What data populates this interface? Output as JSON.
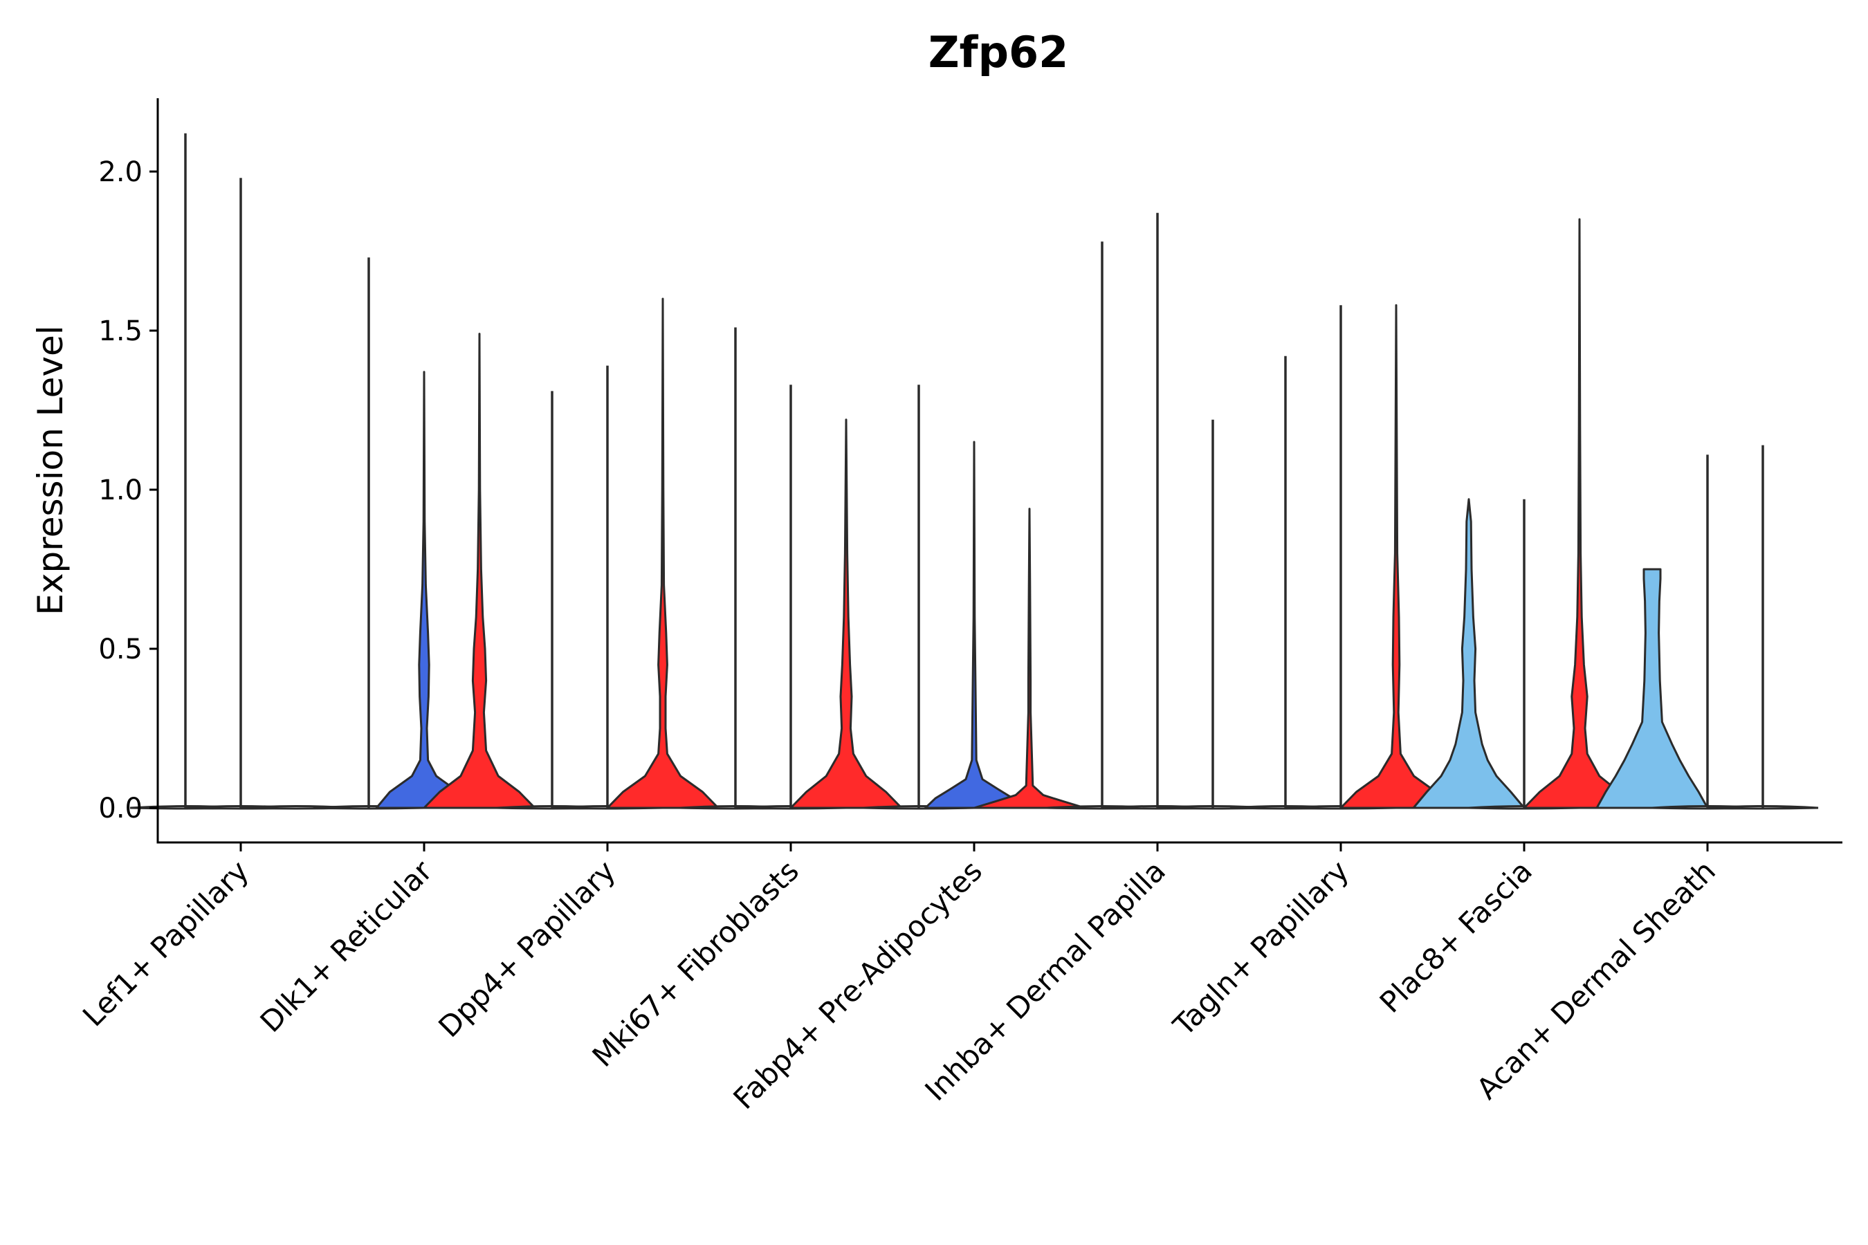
{
  "chart_data": {
    "type": "violin",
    "title": "Zfp62",
    "xlabel": "",
    "ylabel": "Expression Level",
    "ylim": [
      -0.11,
      2.24
    ],
    "yticks": [
      "0.0",
      "0.5",
      "1.0",
      "1.5",
      "2.0"
    ],
    "grid": false,
    "legend": "none",
    "colors": {
      "a": "#4169E1",
      "b": "#FF2A2A",
      "c": "#7CC0EC"
    },
    "categories": [
      "Lef1+ Papillary",
      "Dlk1+ Reticular",
      "Dpp4+ Papillary",
      "Mki67+ Fibroblasts",
      "Fabp4+ Pre-Adipocytes",
      "Inhba+ Dermal Papilla",
      "Tagln+ Papillary",
      "Plac8+ Fascia",
      "Acan+ Dermal Sheath"
    ],
    "violins": [
      {
        "category": "Lef1+ Papillary",
        "slot": 0,
        "max": 2.12,
        "color": "",
        "profile": []
      },
      {
        "category": "Lef1+ Papillary",
        "slot": 1,
        "max": 1.98,
        "color": "",
        "profile": []
      },
      {
        "category": "Lef1+ Papillary",
        "slot": 2,
        "max": 0.0,
        "color": "",
        "profile": []
      },
      {
        "category": "Dlk1+ Reticular",
        "slot": 0,
        "max": 1.73,
        "color": "",
        "profile": []
      },
      {
        "category": "Dlk1+ Reticular",
        "slot": 1,
        "max": 1.37,
        "color": "a",
        "profile": [
          [
            0,
            0.86
          ],
          [
            0.05,
            0.62
          ],
          [
            0.1,
            0.22
          ],
          [
            0.15,
            0.07
          ],
          [
            0.25,
            0.05
          ],
          [
            0.35,
            0.08
          ],
          [
            0.45,
            0.09
          ],
          [
            0.55,
            0.07
          ],
          [
            0.7,
            0.03
          ],
          [
            0.9,
            0.01
          ],
          [
            1.37,
            0
          ]
        ]
      },
      {
        "category": "Dlk1+ Reticular",
        "slot": 2,
        "max": 1.49,
        "color": "b",
        "profile": [
          [
            0,
            1
          ],
          [
            0.05,
            0.72
          ],
          [
            0.1,
            0.34
          ],
          [
            0.18,
            0.12
          ],
          [
            0.3,
            0.08
          ],
          [
            0.4,
            0.12
          ],
          [
            0.5,
            0.1
          ],
          [
            0.6,
            0.06
          ],
          [
            0.75,
            0.03
          ],
          [
            1.0,
            0.01
          ],
          [
            1.49,
            0
          ]
        ]
      },
      {
        "category": "Dpp4+ Papillary",
        "slot": 0,
        "max": 1.31,
        "color": "",
        "profile": []
      },
      {
        "category": "Dpp4+ Papillary",
        "slot": 1,
        "max": 1.39,
        "color": "",
        "profile": []
      },
      {
        "category": "Dpp4+ Papillary",
        "slot": 2,
        "max": 1.6,
        "color": "b",
        "profile": [
          [
            0,
            1
          ],
          [
            0.05,
            0.72
          ],
          [
            0.1,
            0.32
          ],
          [
            0.17,
            0.08
          ],
          [
            0.25,
            0.05
          ],
          [
            0.35,
            0.05
          ],
          [
            0.45,
            0.08
          ],
          [
            0.55,
            0.06
          ],
          [
            0.7,
            0.02
          ],
          [
            1.0,
            0.01
          ],
          [
            1.6,
            0
          ]
        ]
      },
      {
        "category": "Mki67+ Fibroblasts",
        "slot": 0,
        "max": 1.51,
        "color": "",
        "profile": []
      },
      {
        "category": "Mki67+ Fibroblasts",
        "slot": 1,
        "max": 1.33,
        "color": "",
        "profile": []
      },
      {
        "category": "Mki67+ Fibroblasts",
        "slot": 2,
        "max": 1.22,
        "color": "b",
        "profile": [
          [
            0,
            1
          ],
          [
            0.05,
            0.72
          ],
          [
            0.1,
            0.36
          ],
          [
            0.17,
            0.13
          ],
          [
            0.25,
            0.08
          ],
          [
            0.35,
            0.1
          ],
          [
            0.45,
            0.07
          ],
          [
            0.6,
            0.04
          ],
          [
            0.8,
            0.02
          ],
          [
            1.22,
            0
          ]
        ]
      },
      {
        "category": "Fabp4+ Pre-Adipocytes",
        "slot": 0,
        "max": 1.33,
        "color": "",
        "profile": []
      },
      {
        "category": "Fabp4+ Pre-Adipocytes",
        "slot": 1,
        "max": 1.15,
        "color": "a",
        "profile": [
          [
            0,
            0.88
          ],
          [
            0.03,
            0.7
          ],
          [
            0.06,
            0.42
          ],
          [
            0.09,
            0.15
          ],
          [
            0.15,
            0.04
          ],
          [
            0.3,
            0.03
          ],
          [
            0.45,
            0.02
          ],
          [
            0.6,
            0.01
          ],
          [
            1.15,
            0
          ]
        ]
      },
      {
        "category": "Fabp4+ Pre-Adipocytes",
        "slot": 2,
        "max": 0.94,
        "color": "b",
        "profile": [
          [
            0,
            1
          ],
          [
            0.02,
            0.62
          ],
          [
            0.04,
            0.25
          ],
          [
            0.07,
            0.06
          ],
          [
            0.3,
            0.02
          ],
          [
            0.4,
            0.02
          ],
          [
            0.7,
            0.01
          ],
          [
            0.94,
            0
          ]
        ]
      },
      {
        "category": "Inhba+ Dermal Papilla",
        "slot": 0,
        "max": 1.78,
        "color": "",
        "profile": []
      },
      {
        "category": "Inhba+ Dermal Papilla",
        "slot": 1,
        "max": 1.87,
        "color": "",
        "profile": []
      },
      {
        "category": "Inhba+ Dermal Papilla",
        "slot": 2,
        "max": 1.22,
        "color": "",
        "profile": []
      },
      {
        "category": "Tagln+ Papillary",
        "slot": 0,
        "max": 1.42,
        "color": "",
        "profile": []
      },
      {
        "category": "Tagln+ Papillary",
        "slot": 1,
        "max": 1.58,
        "color": "",
        "profile": []
      },
      {
        "category": "Tagln+ Papillary",
        "slot": 2,
        "max": 1.58,
        "color": "b",
        "profile": [
          [
            0,
            1
          ],
          [
            0.05,
            0.72
          ],
          [
            0.1,
            0.32
          ],
          [
            0.17,
            0.08
          ],
          [
            0.3,
            0.04
          ],
          [
            0.45,
            0.06
          ],
          [
            0.6,
            0.05
          ],
          [
            0.8,
            0.02
          ],
          [
            1.58,
            0
          ]
        ]
      },
      {
        "category": "Plac8+ Fascia",
        "slot": 0,
        "max": 0.97,
        "color": "c",
        "profile": [
          [
            0,
            1
          ],
          [
            0.05,
            0.76
          ],
          [
            0.1,
            0.5
          ],
          [
            0.15,
            0.34
          ],
          [
            0.2,
            0.24
          ],
          [
            0.3,
            0.12
          ],
          [
            0.4,
            0.1
          ],
          [
            0.5,
            0.12
          ],
          [
            0.6,
            0.08
          ],
          [
            0.75,
            0.05
          ],
          [
            0.9,
            0.04
          ],
          [
            0.97,
            0
          ]
        ]
      },
      {
        "category": "Plac8+ Fascia",
        "slot": 1,
        "max": 0.97,
        "color": "",
        "profile": []
      },
      {
        "category": "Plac8+ Fascia",
        "slot": 2,
        "max": 1.85,
        "color": "b",
        "profile": [
          [
            0,
            1
          ],
          [
            0.05,
            0.72
          ],
          [
            0.1,
            0.36
          ],
          [
            0.17,
            0.14
          ],
          [
            0.25,
            0.1
          ],
          [
            0.35,
            0.14
          ],
          [
            0.45,
            0.08
          ],
          [
            0.6,
            0.04
          ],
          [
            0.8,
            0.02
          ],
          [
            1.2,
            0.01
          ],
          [
            1.85,
            0
          ]
        ]
      },
      {
        "category": "Acan+ Dermal Sheath",
        "slot": 0,
        "max": 0.75,
        "color": "c",
        "profile": [
          [
            0,
            1
          ],
          [
            0.05,
            0.84
          ],
          [
            0.1,
            0.66
          ],
          [
            0.15,
            0.5
          ],
          [
            0.2,
            0.36
          ],
          [
            0.27,
            0.18
          ],
          [
            0.4,
            0.14
          ],
          [
            0.55,
            0.12
          ],
          [
            0.65,
            0.13
          ],
          [
            0.72,
            0.15
          ],
          [
            0.75,
            0.15
          ]
        ]
      },
      {
        "category": "Acan+ Dermal Sheath",
        "slot": 1,
        "max": 1.11,
        "color": "",
        "profile": []
      },
      {
        "category": "Acan+ Dermal Sheath",
        "slot": 2,
        "max": 1.14,
        "color": "",
        "profile": []
      }
    ]
  }
}
